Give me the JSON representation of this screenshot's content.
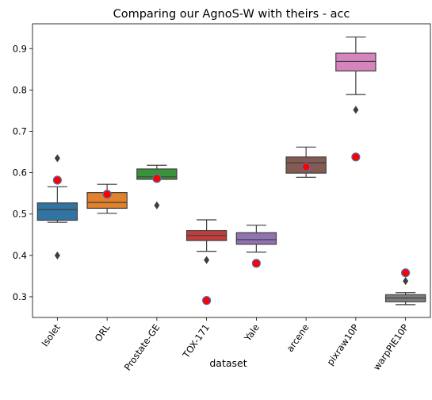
{
  "chart_data": {
    "type": "box",
    "title": "Comparing our AgnoS-W with theirs - acc",
    "xlabel": "dataset",
    "ylabel": "",
    "ylim": [
      0.25,
      0.96
    ],
    "yticks": [
      0.3,
      0.4,
      0.5,
      0.6,
      0.7,
      0.8,
      0.9
    ],
    "grid": false,
    "categories": [
      "Isolet",
      "ORL",
      "Prostate-GE",
      "TOX-171",
      "Yale",
      "arcene",
      "pixraw10P",
      "warpPIE10P"
    ],
    "boxes": [
      {
        "name": "Isolet",
        "color": "#3274a1",
        "whisker_low": 0.48,
        "q1": 0.485,
        "median": 0.511,
        "q3": 0.527,
        "whisker_high": 0.566,
        "outliers": [
          0.635,
          0.4
        ],
        "ours": 0.582
      },
      {
        "name": "ORL",
        "color": "#e1812c",
        "whisker_low": 0.502,
        "q1": 0.514,
        "median": 0.528,
        "q3": 0.552,
        "whisker_high": 0.572,
        "outliers": [],
        "ours": 0.548
      },
      {
        "name": "Prostate-GE",
        "color": "#3a923a",
        "whisker_low": 0.584,
        "q1": 0.584,
        "median": 0.59,
        "q3": 0.609,
        "whisker_high": 0.618,
        "outliers": [
          0.521
        ],
        "ours": 0.586
      },
      {
        "name": "TOX-171",
        "color": "#c03d3e",
        "whisker_low": 0.41,
        "q1": 0.436,
        "median": 0.448,
        "q3": 0.46,
        "whisker_high": 0.486,
        "outliers": [
          0.389
        ],
        "ours": 0.291
      },
      {
        "name": "Yale",
        "color": "#9372b2",
        "whisker_low": 0.408,
        "q1": 0.427,
        "median": 0.438,
        "q3": 0.455,
        "whisker_high": 0.473,
        "outliers": [],
        "ours": 0.381
      },
      {
        "name": "arcene",
        "color": "#845b53",
        "whisker_low": 0.589,
        "q1": 0.599,
        "median": 0.624,
        "q3": 0.638,
        "whisker_high": 0.662,
        "outliers": [],
        "ours": 0.614
      },
      {
        "name": "pixraw10P",
        "color": "#d684bd",
        "whisker_low": 0.789,
        "q1": 0.846,
        "median": 0.869,
        "q3": 0.889,
        "whisker_high": 0.928,
        "outliers": [
          0.752
        ],
        "ours": 0.638
      },
      {
        "name": "warpPIE10P",
        "color": "#7f7f7f",
        "whisker_low": 0.281,
        "q1": 0.288,
        "median": 0.297,
        "q3": 0.305,
        "whisker_high": 0.31,
        "outliers": [
          0.338
        ],
        "ours": 0.358
      }
    ],
    "marker_color": "#ff0000",
    "marker_edge": "#4c72b0"
  }
}
